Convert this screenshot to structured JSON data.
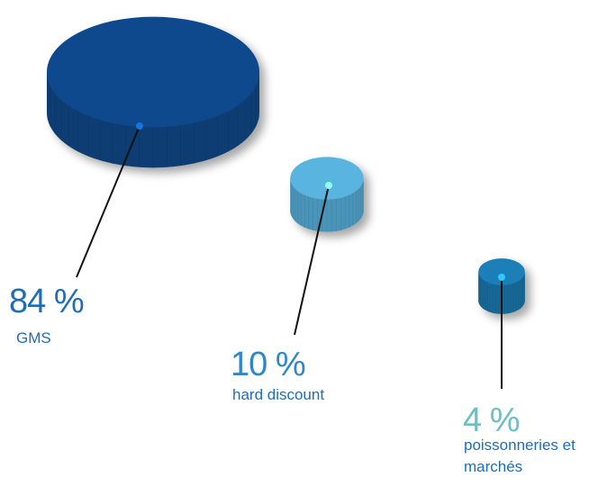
{
  "chart_data": {
    "type": "bubble",
    "categories": [
      "GMS",
      "hard discount",
      "poissonneries et marchés"
    ],
    "values": [
      84,
      10,
      4
    ],
    "value_labels": [
      "84 %",
      "10 %",
      "4 %"
    ],
    "colors": [
      "#0d4a8c",
      "#5ab4e0",
      "#1a7fb8"
    ]
  }
}
